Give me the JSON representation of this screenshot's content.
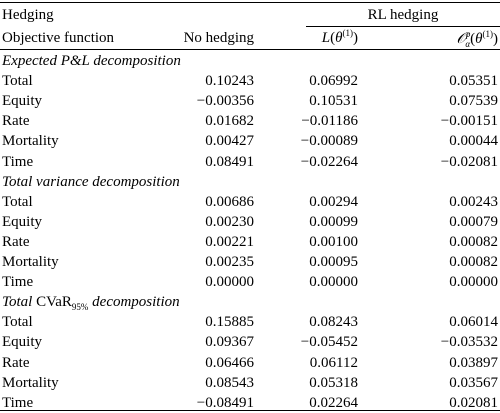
{
  "header": {
    "hedging_label": "Hedging",
    "rl_hedging_label": "RL hedging",
    "objective_label": "Objective function",
    "no_hedging_label": "No hedging",
    "col_l": "L(θ(1))",
    "col_o": "Oαp(θ(1))"
  },
  "sections": [
    {
      "title": "Expected P&L decomposition",
      "rows": [
        {
          "label": "Total",
          "no_hedging": "0.10243",
          "l": "0.06992",
          "o": "0.05351"
        },
        {
          "label": "Equity",
          "no_hedging": "−0.00356",
          "l": "0.10531",
          "o": "0.07539"
        },
        {
          "label": "Rate",
          "no_hedging": "0.01682",
          "l": "−0.01186",
          "o": "−0.00151"
        },
        {
          "label": "Mortality",
          "no_hedging": "0.00427",
          "l": "−0.00089",
          "o": "0.00044"
        },
        {
          "label": "Time",
          "no_hedging": "0.08491",
          "l": "−0.02264",
          "o": "−0.02081"
        }
      ]
    },
    {
      "title": "Total variance decomposition",
      "rows": [
        {
          "label": "Total",
          "no_hedging": "0.00686",
          "l": "0.00294",
          "o": "0.00243"
        },
        {
          "label": "Equity",
          "no_hedging": "0.00230",
          "l": "0.00099",
          "o": "0.00079"
        },
        {
          "label": "Rate",
          "no_hedging": "0.00221",
          "l": "0.00100",
          "o": "0.00082"
        },
        {
          "label": "Mortality",
          "no_hedging": "0.00235",
          "l": "0.00095",
          "o": "0.00082"
        },
        {
          "label": "Time",
          "no_hedging": "0.00000",
          "l": "0.00000",
          "o": "0.00000"
        }
      ]
    },
    {
      "title_pre": "Total",
      "title_mid": "CVaR",
      "title_sub": "95%",
      "title_post": "decomposition",
      "rows": [
        {
          "label": "Total",
          "no_hedging": "0.15885",
          "l": "0.08243",
          "o": "0.06014"
        },
        {
          "label": "Equity",
          "no_hedging": "0.09367",
          "l": "−0.05452",
          "o": "−0.03532"
        },
        {
          "label": "Rate",
          "no_hedging": "0.06466",
          "l": "0.06112",
          "o": "0.03897"
        },
        {
          "label": "Mortality",
          "no_hedging": "0.08543",
          "l": "0.05318",
          "o": "0.03567"
        },
        {
          "label": "Time",
          "no_hedging": "−0.08491",
          "l": "0.02264",
          "o": "0.02081"
        }
      ]
    }
  ]
}
